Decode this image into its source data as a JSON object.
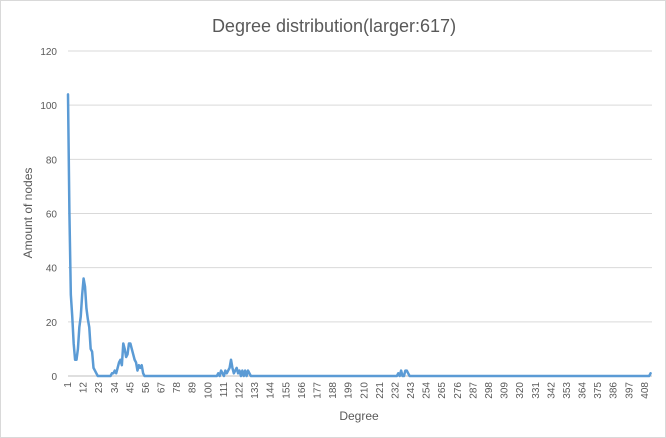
{
  "chart_data": {
    "type": "line",
    "title": "Degree distribution(larger:617)",
    "xlabel": "Degree",
    "ylabel": "Amount of nodes",
    "ylim": [
      0,
      120
    ],
    "yticks": [
      "0",
      "20",
      "40",
      "60",
      "80",
      "100",
      "120"
    ],
    "grid": "horizontal",
    "legend": "none",
    "line_color": "#5b9bd5",
    "xtick_labels": [
      "1",
      "12",
      "23",
      "34",
      "45",
      "56",
      "67",
      "78",
      "89",
      "100",
      "111",
      "122",
      "133",
      "144",
      "155",
      "166",
      "177",
      "188",
      "199",
      "210",
      "221",
      "232",
      "243",
      "254",
      "265",
      "276",
      "287",
      "298",
      "309",
      "320",
      "331",
      "342",
      "353",
      "364",
      "375",
      "386",
      "397",
      "408"
    ],
    "series": [
      {
        "points": [
          [
            1,
            104
          ],
          [
            2,
            60
          ],
          [
            3,
            30
          ],
          [
            4,
            22
          ],
          [
            5,
            12
          ],
          [
            6,
            6
          ],
          [
            7,
            6
          ],
          [
            8,
            10
          ],
          [
            9,
            18
          ],
          [
            10,
            22
          ],
          [
            11,
            30
          ],
          [
            12,
            36
          ],
          [
            13,
            33
          ],
          [
            14,
            25
          ],
          [
            15,
            21
          ],
          [
            16,
            18
          ],
          [
            17,
            10
          ],
          [
            18,
            9
          ],
          [
            19,
            3
          ],
          [
            20,
            2
          ],
          [
            21,
            1
          ],
          [
            22,
            0
          ],
          [
            31,
            0
          ],
          [
            32,
            1
          ],
          [
            33,
            1
          ],
          [
            34,
            2
          ],
          [
            35,
            1
          ],
          [
            36,
            3
          ],
          [
            37,
            5
          ],
          [
            38,
            6
          ],
          [
            39,
            4
          ],
          [
            40,
            12
          ],
          [
            41,
            10
          ],
          [
            42,
            7
          ],
          [
            43,
            8
          ],
          [
            44,
            12
          ],
          [
            45,
            12
          ],
          [
            46,
            10
          ],
          [
            47,
            8
          ],
          [
            48,
            6
          ],
          [
            49,
            5
          ],
          [
            50,
            2
          ],
          [
            51,
            4
          ],
          [
            52,
            3
          ],
          [
            53,
            4
          ],
          [
            54,
            1
          ],
          [
            55,
            0
          ],
          [
            106,
            0
          ],
          [
            107,
            1
          ],
          [
            108,
            0
          ],
          [
            109,
            2
          ],
          [
            110,
            1
          ],
          [
            111,
            0
          ],
          [
            112,
            2
          ],
          [
            113,
            1
          ],
          [
            114,
            2
          ],
          [
            115,
            3
          ],
          [
            116,
            6
          ],
          [
            117,
            3
          ],
          [
            118,
            1
          ],
          [
            119,
            2
          ],
          [
            120,
            3
          ],
          [
            121,
            1
          ],
          [
            122,
            2
          ],
          [
            123,
            0
          ],
          [
            124,
            2
          ],
          [
            125,
            0
          ],
          [
            126,
            2
          ],
          [
            127,
            0
          ],
          [
            128,
            2
          ],
          [
            129,
            1
          ],
          [
            130,
            0
          ],
          [
            233,
            0
          ],
          [
            234,
            1
          ],
          [
            235,
            0
          ],
          [
            236,
            2
          ],
          [
            237,
            0
          ],
          [
            238,
            0
          ],
          [
            239,
            2
          ],
          [
            240,
            2
          ],
          [
            241,
            1
          ],
          [
            242,
            0
          ],
          [
            411,
            0
          ],
          [
            412,
            1
          ]
        ]
      }
    ]
  }
}
